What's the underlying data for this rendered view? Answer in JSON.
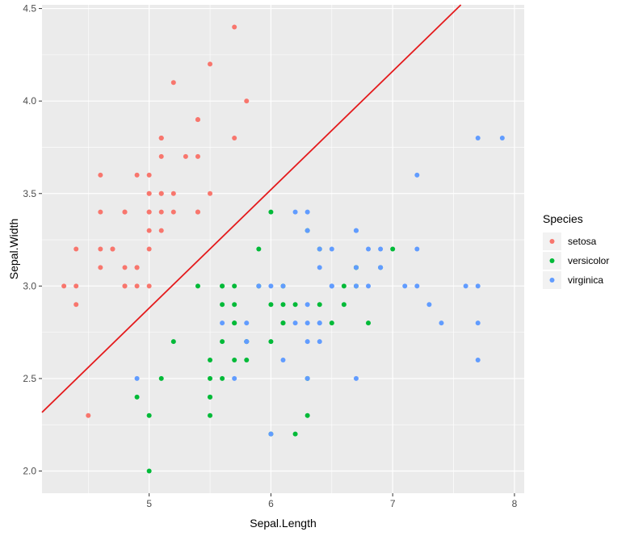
{
  "chart_data": {
    "type": "scatter",
    "xlabel": "Sepal.Length",
    "ylabel": "Sepal.Width",
    "xlim": [
      4.12,
      8.08
    ],
    "ylim": [
      1.88,
      4.52
    ],
    "x_ticks": [
      5,
      6,
      7,
      8
    ],
    "y_ticks": [
      2.0,
      2.5,
      3.0,
      3.5,
      4.0,
      4.5
    ],
    "x_tick_labels": [
      "5",
      "6",
      "7",
      "8"
    ],
    "y_tick_labels": [
      "2.0",
      "2.5",
      "3.0",
      "3.5",
      "4.0",
      "4.5"
    ],
    "grid": true,
    "legend": {
      "title": "Species",
      "placement": "right"
    },
    "series": [
      {
        "name": "setosa",
        "color": "#F8766D",
        "points": [
          [
            5.1,
            3.5
          ],
          [
            4.9,
            3.0
          ],
          [
            4.7,
            3.2
          ],
          [
            4.6,
            3.1
          ],
          [
            5.0,
            3.6
          ],
          [
            5.4,
            3.9
          ],
          [
            4.6,
            3.4
          ],
          [
            5.0,
            3.4
          ],
          [
            4.4,
            2.9
          ],
          [
            4.9,
            3.1
          ],
          [
            5.4,
            3.7
          ],
          [
            4.8,
            3.4
          ],
          [
            4.8,
            3.0
          ],
          [
            4.3,
            3.0
          ],
          [
            5.8,
            4.0
          ],
          [
            5.7,
            4.4
          ],
          [
            5.4,
            3.9
          ],
          [
            5.1,
            3.5
          ],
          [
            5.7,
            3.8
          ],
          [
            5.1,
            3.8
          ],
          [
            5.4,
            3.4
          ],
          [
            5.1,
            3.7
          ],
          [
            4.6,
            3.6
          ],
          [
            5.1,
            3.3
          ],
          [
            4.8,
            3.4
          ],
          [
            5.0,
            3.0
          ],
          [
            5.0,
            3.4
          ],
          [
            5.2,
            3.5
          ],
          [
            5.2,
            3.4
          ],
          [
            4.7,
            3.2
          ],
          [
            4.8,
            3.1
          ],
          [
            5.4,
            3.4
          ],
          [
            5.2,
            4.1
          ],
          [
            5.5,
            4.2
          ],
          [
            4.9,
            3.1
          ],
          [
            5.0,
            3.2
          ],
          [
            5.5,
            3.5
          ],
          [
            4.9,
            3.6
          ],
          [
            4.4,
            3.0
          ],
          [
            5.1,
            3.4
          ],
          [
            5.0,
            3.5
          ],
          [
            4.5,
            2.3
          ],
          [
            4.4,
            3.2
          ],
          [
            5.0,
            3.5
          ],
          [
            5.1,
            3.8
          ],
          [
            4.8,
            3.0
          ],
          [
            5.1,
            3.8
          ],
          [
            4.6,
            3.2
          ],
          [
            5.3,
            3.7
          ],
          [
            5.0,
            3.3
          ]
        ]
      },
      {
        "name": "versicolor",
        "color": "#00BA38",
        "points": [
          [
            7.0,
            3.2
          ],
          [
            6.4,
            3.2
          ],
          [
            6.9,
            3.1
          ],
          [
            5.5,
            2.3
          ],
          [
            6.5,
            2.8
          ],
          [
            5.7,
            2.8
          ],
          [
            6.3,
            3.3
          ],
          [
            4.9,
            2.4
          ],
          [
            6.6,
            2.9
          ],
          [
            5.2,
            2.7
          ],
          [
            5.0,
            2.0
          ],
          [
            5.9,
            3.0
          ],
          [
            6.0,
            2.2
          ],
          [
            6.1,
            2.9
          ],
          [
            5.6,
            2.9
          ],
          [
            6.7,
            3.1
          ],
          [
            5.6,
            3.0
          ],
          [
            5.8,
            2.7
          ],
          [
            6.2,
            2.2
          ],
          [
            5.6,
            2.5
          ],
          [
            5.9,
            3.2
          ],
          [
            6.1,
            2.8
          ],
          [
            6.3,
            2.5
          ],
          [
            6.1,
            2.8
          ],
          [
            6.4,
            2.9
          ],
          [
            6.6,
            3.0
          ],
          [
            6.8,
            2.8
          ],
          [
            6.7,
            3.0
          ],
          [
            6.0,
            2.9
          ],
          [
            5.7,
            2.6
          ],
          [
            5.5,
            2.4
          ],
          [
            5.5,
            2.4
          ],
          [
            5.8,
            2.7
          ],
          [
            6.0,
            2.7
          ],
          [
            5.4,
            3.0
          ],
          [
            6.0,
            3.4
          ],
          [
            6.7,
            3.1
          ],
          [
            6.3,
            2.3
          ],
          [
            5.6,
            3.0
          ],
          [
            5.5,
            2.5
          ],
          [
            5.5,
            2.6
          ],
          [
            6.1,
            3.0
          ],
          [
            5.8,
            2.6
          ],
          [
            5.0,
            2.3
          ],
          [
            5.6,
            2.7
          ],
          [
            5.7,
            3.0
          ],
          [
            5.7,
            2.9
          ],
          [
            6.2,
            2.9
          ],
          [
            5.1,
            2.5
          ],
          [
            5.7,
            2.8
          ]
        ]
      },
      {
        "name": "virginica",
        "color": "#619CFF",
        "points": [
          [
            6.3,
            3.3
          ],
          [
            5.8,
            2.7
          ],
          [
            7.1,
            3.0
          ],
          [
            6.3,
            2.9
          ],
          [
            6.5,
            3.0
          ],
          [
            7.6,
            3.0
          ],
          [
            4.9,
            2.5
          ],
          [
            7.3,
            2.9
          ],
          [
            6.7,
            2.5
          ],
          [
            7.2,
            3.6
          ],
          [
            6.5,
            3.2
          ],
          [
            6.4,
            2.7
          ],
          [
            6.8,
            3.0
          ],
          [
            5.7,
            2.5
          ],
          [
            5.8,
            2.8
          ],
          [
            6.4,
            3.2
          ],
          [
            6.5,
            3.0
          ],
          [
            7.7,
            3.8
          ],
          [
            7.7,
            2.6
          ],
          [
            6.0,
            2.2
          ],
          [
            6.9,
            3.2
          ],
          [
            5.6,
            2.8
          ],
          [
            7.7,
            2.8
          ],
          [
            6.3,
            2.7
          ],
          [
            6.7,
            3.3
          ],
          [
            7.2,
            3.2
          ],
          [
            6.2,
            2.8
          ],
          [
            6.1,
            3.0
          ],
          [
            6.4,
            2.8
          ],
          [
            7.2,
            3.0
          ],
          [
            7.4,
            2.8
          ],
          [
            7.9,
            3.8
          ],
          [
            6.4,
            2.8
          ],
          [
            6.3,
            2.8
          ],
          [
            6.1,
            2.6
          ],
          [
            7.7,
            3.0
          ],
          [
            6.3,
            3.4
          ],
          [
            6.4,
            3.1
          ],
          [
            6.0,
            3.0
          ],
          [
            6.9,
            3.1
          ],
          [
            6.7,
            3.1
          ],
          [
            6.9,
            3.1
          ],
          [
            5.8,
            2.7
          ],
          [
            6.8,
            3.2
          ],
          [
            6.7,
            3.3
          ],
          [
            6.7,
            3.0
          ],
          [
            6.3,
            2.5
          ],
          [
            6.5,
            3.0
          ],
          [
            6.2,
            3.4
          ],
          [
            5.9,
            3.0
          ]
        ]
      }
    ],
    "reference_line": {
      "color": "#E41A1C",
      "from": [
        4.12,
        2.317
      ],
      "to": [
        7.56,
        4.52
      ]
    },
    "colors": {
      "panel_background": "#EBEBEB",
      "grid": "#FFFFFF"
    }
  }
}
